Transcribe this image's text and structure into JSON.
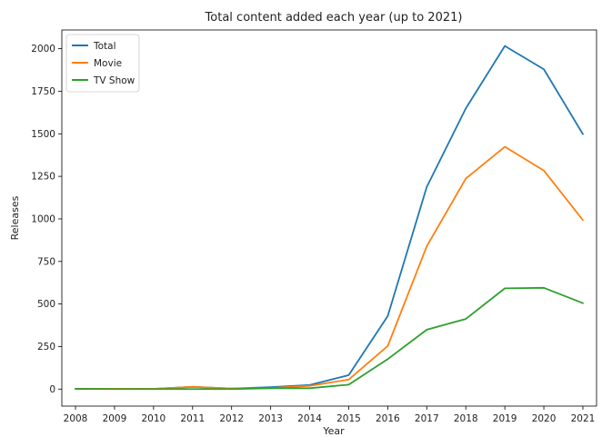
{
  "chart_data": {
    "type": "line",
    "title": "Total content added each year (up to 2021)",
    "xlabel": "Year",
    "ylabel": "Releases",
    "x": [
      2008,
      2009,
      2010,
      2011,
      2012,
      2013,
      2014,
      2015,
      2016,
      2017,
      2018,
      2019,
      2020,
      2021
    ],
    "xlim": [
      2007.65,
      2021.35
    ],
    "ylim": [
      -100,
      2110
    ],
    "yticks": [
      0,
      250,
      500,
      750,
      1000,
      1250,
      1500,
      1750,
      2000
    ],
    "grid": false,
    "legend_position": "upper-left",
    "series": [
      {
        "name": "Total",
        "color": "#1f77b4",
        "values": [
          2,
          2,
          1,
          13,
          3,
          11,
          24,
          82,
          429,
          1188,
          1649,
          2016,
          1879,
          1498
        ]
      },
      {
        "name": "Movie",
        "color": "#ff7f0e",
        "values": [
          1,
          2,
          1,
          13,
          3,
          6,
          19,
          56,
          253,
          839,
          1237,
          1424,
          1284,
          993
        ]
      },
      {
        "name": "TV Show",
        "color": "#2ca02c",
        "values": [
          1,
          0,
          0,
          0,
          0,
          5,
          5,
          26,
          176,
          349,
          412,
          592,
          595,
          505
        ]
      }
    ]
  }
}
